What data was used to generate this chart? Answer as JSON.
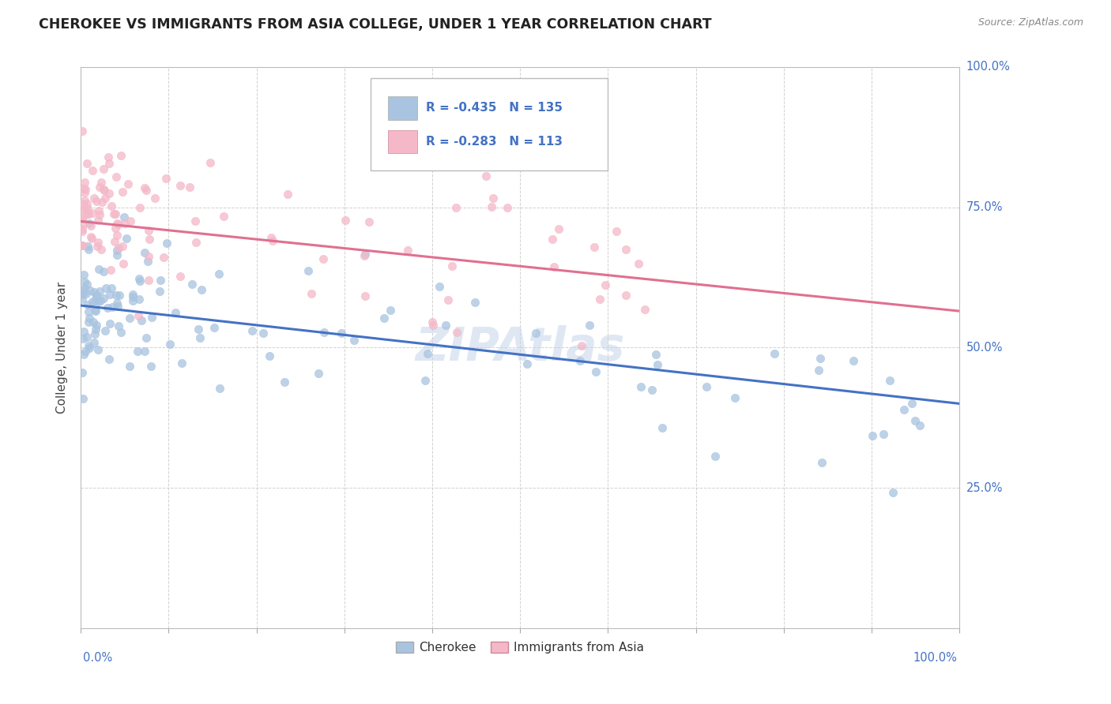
{
  "title": "CHEROKEE VS IMMIGRANTS FROM ASIA COLLEGE, UNDER 1 YEAR CORRELATION CHART",
  "source": "Source: ZipAtlas.com",
  "ylabel": "College, Under 1 year",
  "xlim": [
    0.0,
    1.0
  ],
  "ylim": [
    0.0,
    1.0
  ],
  "legend_r_blue": "-0.435",
  "legend_n_blue": "135",
  "legend_r_pink": "-0.283",
  "legend_n_pink": "113",
  "legend_label_blue": "Cherokee",
  "legend_label_pink": "Immigrants from Asia",
  "color_blue": "#a8c4e0",
  "color_blue_line": "#4472c4",
  "color_pink": "#f4b8c8",
  "color_pink_line": "#e07090",
  "color_title": "#222222",
  "color_axis_label": "#4472c4",
  "background_color": "#ffffff",
  "grid_color": "#cccccc"
}
